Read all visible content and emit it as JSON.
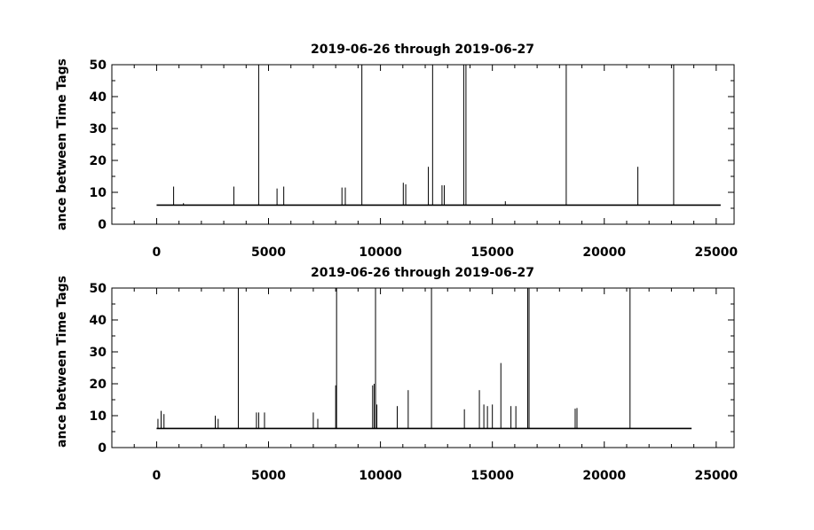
{
  "chart_data": [
    {
      "type": "line",
      "title": "2019-06-26 through 2019-06-27",
      "ylabel": "ance between Time Tags",
      "xlabel": "",
      "xlim": [
        -2000,
        25800
      ],
      "ylim": [
        0,
        50
      ],
      "xticks": [
        "0",
        "5000",
        "10000",
        "15000",
        "20000",
        "25000"
      ],
      "yticks": [
        "0",
        "10",
        "20",
        "30",
        "40",
        "50"
      ],
      "grid": false,
      "baseline": 6,
      "x_start": 0,
      "x_end": 25200,
      "spikes": [
        {
          "x": 760,
          "y": 11.8
        },
        {
          "x": 1200,
          "y": 6.6
        },
        {
          "x": 3450,
          "y": 11.8
        },
        {
          "x": 4560,
          "y": 50
        },
        {
          "x": 5380,
          "y": 11.2
        },
        {
          "x": 5680,
          "y": 11.8
        },
        {
          "x": 8280,
          "y": 11.5
        },
        {
          "x": 8430,
          "y": 11.5
        },
        {
          "x": 9170,
          "y": 50
        },
        {
          "x": 11020,
          "y": 13
        },
        {
          "x": 11130,
          "y": 12.5
        },
        {
          "x": 12140,
          "y": 18
        },
        {
          "x": 12330,
          "y": 50
        },
        {
          "x": 12750,
          "y": 12.2
        },
        {
          "x": 12850,
          "y": 12.2
        },
        {
          "x": 13720,
          "y": 50
        },
        {
          "x": 13820,
          "y": 50
        },
        {
          "x": 15580,
          "y": 7.2
        },
        {
          "x": 18300,
          "y": 50
        },
        {
          "x": 21500,
          "y": 18
        },
        {
          "x": 23100,
          "y": 50
        }
      ]
    },
    {
      "type": "line",
      "title": "2019-06-26 through 2019-06-27",
      "ylabel": "ance between Time Tags",
      "xlabel": "",
      "xlim": [
        -2000,
        25800
      ],
      "ylim": [
        0,
        50
      ],
      "xticks": [
        "0",
        "5000",
        "10000",
        "15000",
        "20000",
        "25000"
      ],
      "yticks": [
        "0",
        "10",
        "20",
        "30",
        "40",
        "50"
      ],
      "grid": false,
      "baseline": 6,
      "x_start": 0,
      "x_end": 23900,
      "spikes": [
        {
          "x": 60,
          "y": 9
        },
        {
          "x": 200,
          "y": 11.5
        },
        {
          "x": 330,
          "y": 10.5
        },
        {
          "x": 2620,
          "y": 10
        },
        {
          "x": 2750,
          "y": 9
        },
        {
          "x": 3650,
          "y": 50
        },
        {
          "x": 4460,
          "y": 11
        },
        {
          "x": 4560,
          "y": 11
        },
        {
          "x": 4820,
          "y": 11
        },
        {
          "x": 7000,
          "y": 11
        },
        {
          "x": 7200,
          "y": 9
        },
        {
          "x": 8000,
          "y": 19.5
        },
        {
          "x": 8040,
          "y": 50
        },
        {
          "x": 9650,
          "y": 19.5
        },
        {
          "x": 9720,
          "y": 20
        },
        {
          "x": 9780,
          "y": 50
        },
        {
          "x": 9840,
          "y": 13.5
        },
        {
          "x": 10750,
          "y": 13
        },
        {
          "x": 11240,
          "y": 18
        },
        {
          "x": 12280,
          "y": 50
        },
        {
          "x": 13750,
          "y": 12
        },
        {
          "x": 14420,
          "y": 18
        },
        {
          "x": 14620,
          "y": 13.5
        },
        {
          "x": 14780,
          "y": 13
        },
        {
          "x": 15000,
          "y": 13.5
        },
        {
          "x": 15380,
          "y": 26.5
        },
        {
          "x": 15830,
          "y": 13
        },
        {
          "x": 16050,
          "y": 13
        },
        {
          "x": 16580,
          "y": 50
        },
        {
          "x": 16640,
          "y": 50
        },
        {
          "x": 18700,
          "y": 12.2
        },
        {
          "x": 18780,
          "y": 12.4
        },
        {
          "x": 21150,
          "y": 50
        }
      ]
    }
  ]
}
